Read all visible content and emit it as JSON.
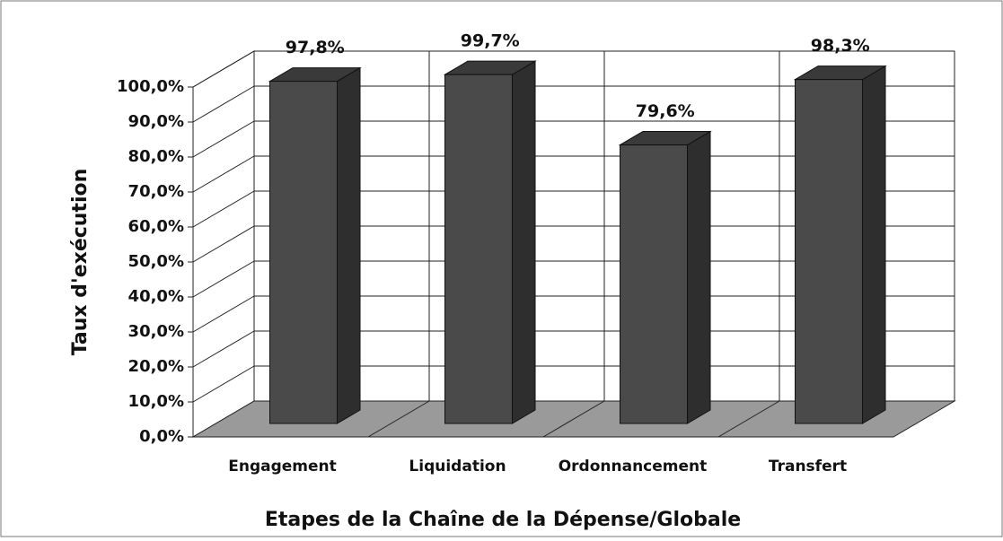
{
  "chart_data": {
    "type": "bar3d",
    "categories": [
      "Engagement",
      "Liquidation",
      "Ordonnancement",
      "Transfert"
    ],
    "values": [
      97.8,
      99.7,
      79.6,
      98.3
    ],
    "value_labels": [
      "97,8%",
      "99,7%",
      "79,6%",
      "98,3%"
    ],
    "color": "#4a4a4a",
    "ylim": [
      0,
      100
    ],
    "yticks": [
      {
        "value": 0,
        "label": "0,0%"
      },
      {
        "value": 10,
        "label": "10,0%"
      },
      {
        "value": 20,
        "label": "20,0%"
      },
      {
        "value": 30,
        "label": "30,0%"
      },
      {
        "value": 40,
        "label": "40,0%"
      },
      {
        "value": 50,
        "label": "50,0%"
      },
      {
        "value": 60,
        "label": "60,0%"
      },
      {
        "value": 70,
        "label": "70,0%"
      },
      {
        "value": 80,
        "label": "80,0%"
      },
      {
        "value": 90,
        "label": "90,0%"
      },
      {
        "value": 100,
        "label": "100,0%"
      }
    ],
    "grid": true,
    "xlabel": "Etapes de la Chaîne de la Dépense/Globale",
    "ylabel": "Taux d'exécution"
  }
}
